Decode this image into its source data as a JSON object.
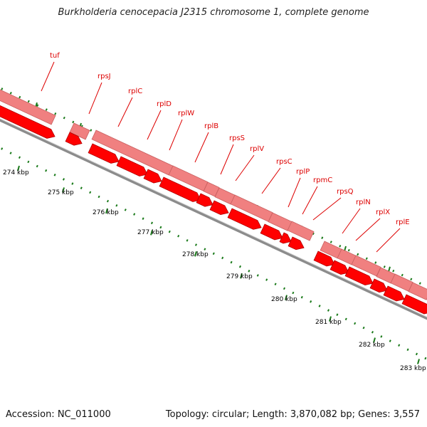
{
  "title": "Burkholderia cenocepacia J2315 chromosome 1, complete genome",
  "footer": {
    "accession": "Accession: NC_011000",
    "summary": "Topology: circular; Length: 3,870,082 bp; Genes: 3,557"
  },
  "colors": {
    "cds_upper": "#f08080",
    "cds_upper_border": "#c86060",
    "cds_lower": "#ff0000",
    "cds_lower_border": "#b00000",
    "backbone": "#8c8c8c",
    "tick": "#1a7a1a",
    "label": "#dd0000",
    "leader": "#dd0000"
  },
  "genes": [
    {
      "name": "tuf"
    },
    {
      "name": "rpsJ"
    },
    {
      "name": "rplC"
    },
    {
      "name": "rplD"
    },
    {
      "name": "rplW"
    },
    {
      "name": "rplB"
    },
    {
      "name": "rpsS"
    },
    {
      "name": "rplV"
    },
    {
      "name": "rpsC"
    },
    {
      "name": "rplP"
    },
    {
      "name": "rpmC"
    },
    {
      "name": "rpsQ"
    },
    {
      "name": "rplN"
    },
    {
      "name": "rplX"
    },
    {
      "name": "rplE"
    }
  ],
  "scale_labels": [
    "274 kbp",
    "275 kbp",
    "276 kbp",
    "277 kbp",
    "278 kbp",
    "279 kbp",
    "280 kbp",
    "281 kbp",
    "282 kbp",
    "283 kbp"
  ]
}
